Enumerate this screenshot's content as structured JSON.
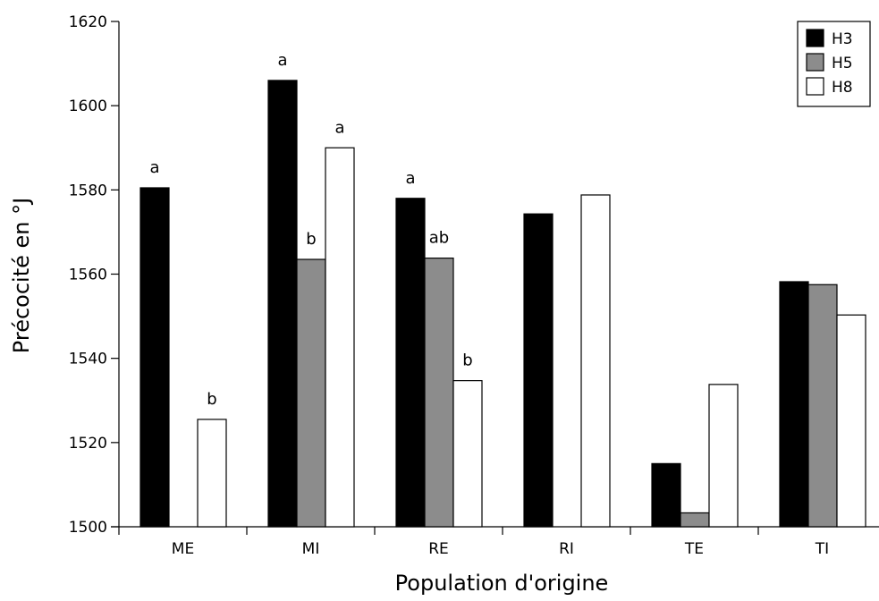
{
  "chart_data": {
    "type": "bar",
    "title": "",
    "xlabel": "Population d'origine",
    "ylabel": "Précocité en °J",
    "ylim": [
      1500,
      1620
    ],
    "yticks": [
      1500,
      1520,
      1540,
      1560,
      1580,
      1600,
      1620
    ],
    "grid": false,
    "legend_position": "top-right",
    "categories": [
      "ME",
      "MI",
      "RE",
      "RI",
      "TE",
      "TI"
    ],
    "series": [
      {
        "name": "H3",
        "color": "#000000",
        "values": [
          1580.5,
          1606,
          1578,
          1574.3,
          1515,
          1558.2
        ],
        "labels": [
          "a",
          "a",
          "a",
          "",
          "",
          ""
        ]
      },
      {
        "name": "H5",
        "color": "#8c8c8c",
        "values": [
          null,
          1563.5,
          1563.8,
          null,
          1503.3,
          1557.5
        ],
        "labels": [
          "",
          "b",
          "ab",
          "",
          "",
          ""
        ]
      },
      {
        "name": "H8",
        "color": "#ffffff",
        "values": [
          1525.5,
          1590,
          1534.7,
          1578.8,
          1533.8,
          1550.3
        ],
        "labels": [
          "b",
          "a",
          "b",
          "",
          "",
          ""
        ]
      }
    ]
  }
}
